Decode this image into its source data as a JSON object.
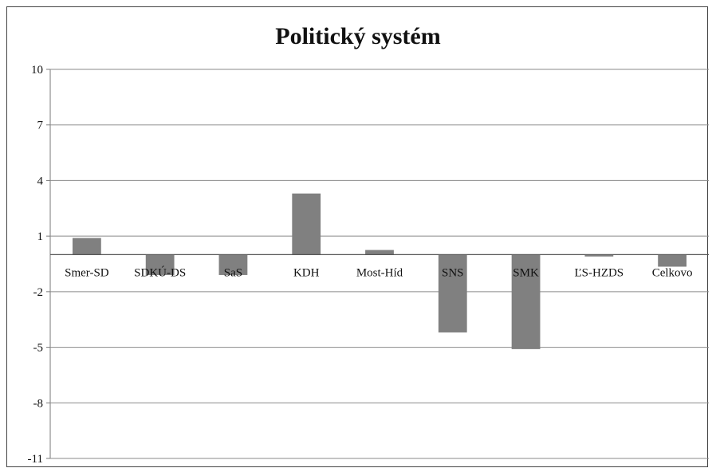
{
  "chart_data": {
    "type": "bar",
    "title": "Politický systém",
    "categories": [
      "Smer-SD",
      "SDKÚ-DS",
      "SaS",
      "KDH",
      "Most-Híd",
      "SNS",
      "SMK",
      "ĽS-HZDS",
      "Celkovo"
    ],
    "values": [
      0.9,
      -1.1,
      -1.1,
      3.3,
      0.25,
      -4.2,
      -5.1,
      -0.1,
      -0.65
    ],
    "ylim": [
      -11,
      10
    ],
    "yticks": [
      10,
      7,
      4,
      1,
      -2,
      -5,
      -8,
      -11
    ],
    "ytick_labels": [
      "10",
      "7",
      "4",
      "1",
      "-2",
      "-5",
      "-8",
      "-11"
    ],
    "xlabel": "",
    "ylabel": "",
    "grid": true,
    "bar_color": "#808080"
  }
}
